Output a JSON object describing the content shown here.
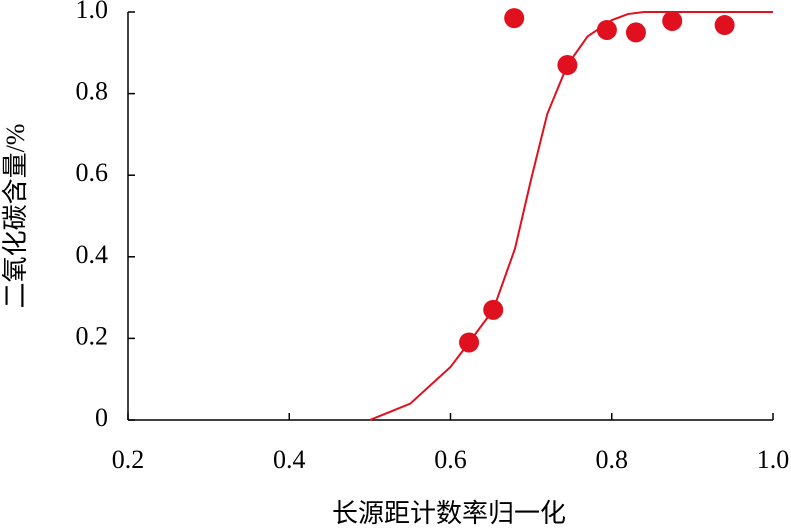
{
  "chart_data": {
    "type": "scatter",
    "xlabel": "长源距计数率归一化",
    "ylabel": "二氧化碳含量/%",
    "series": [
      {
        "mode": "markers",
        "color": "#e0101e",
        "x": [
          0.623,
          0.653,
          0.679,
          0.745,
          0.794,
          0.83,
          0.875,
          0.94
        ],
        "values": [
          0.19,
          0.27,
          0.985,
          0.87,
          0.956,
          0.95,
          0.978,
          0.968
        ]
      },
      {
        "mode": "line",
        "color": "#e0101e",
        "x": [
          0.5,
          0.55,
          0.6,
          0.623,
          0.653,
          0.68,
          0.7,
          0.72,
          0.745,
          0.77,
          0.8,
          0.82,
          0.84,
          0.87,
          0.9,
          1.0
        ],
        "values": [
          0,
          0.04,
          0.13,
          0.19,
          0.27,
          0.42,
          0.59,
          0.75,
          0.87,
          0.94,
          0.98,
          0.995,
          1.0,
          1.0,
          1.0,
          1.0
        ]
      }
    ],
    "xlim": [
      0.2,
      1
    ],
    "xticks": [
      0.2,
      0.4,
      0.6,
      0.8,
      {
        "value": 1,
        "label": "1.0"
      }
    ],
    "ylim": [
      0,
      1
    ],
    "yticks": [
      0,
      0.2,
      0.4,
      0.6,
      0.8,
      {
        "value": 1,
        "label": "1.0"
      }
    ],
    "grid": false
  }
}
